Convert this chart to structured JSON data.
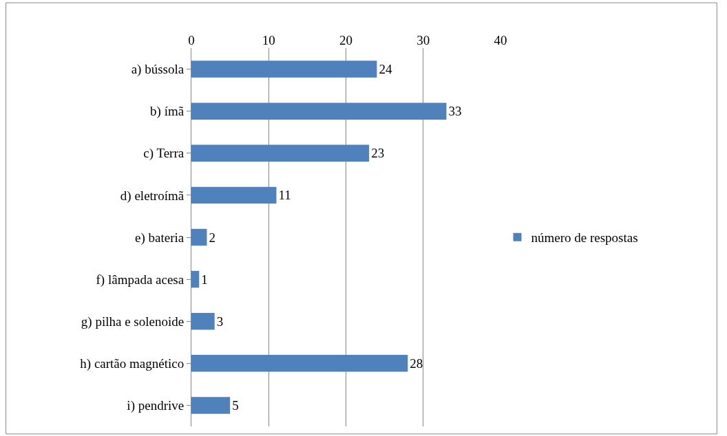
{
  "chart_data": {
    "type": "bar",
    "orientation": "horizontal",
    "categories": [
      "a) bússola",
      "b) ímã",
      "c) Terra",
      "d) eletroímã",
      "e) bateria",
      "f) lâmpada acesa",
      "g) pilha e solenoide",
      "h) cartão magnético",
      "i) pendrive"
    ],
    "series": [
      {
        "name": "número de respostas",
        "color": "#4f81bd",
        "values": [
          24,
          33,
          23,
          11,
          2,
          1,
          3,
          28,
          5
        ]
      }
    ],
    "xlim": [
      0,
      40
    ],
    "xticks": [
      0,
      10,
      20,
      30,
      40
    ],
    "grid": "x",
    "legend": "right",
    "data_labels": true
  }
}
